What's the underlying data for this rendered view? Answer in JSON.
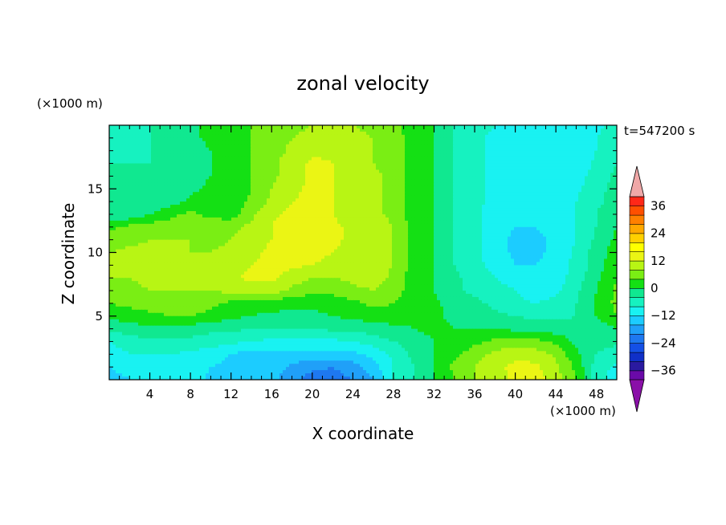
{
  "chart_data": {
    "type": "heatmap",
    "title": "zonal velocity",
    "xlabel": "X coordinate",
    "ylabel": "Z coordinate",
    "x_unit_label": "(×1000 m)",
    "y_unit_label": "(×1000 m)",
    "time_label": "t=547200 s",
    "xlim": [
      0,
      50
    ],
    "ylim": [
      0,
      20
    ],
    "x_ticks": [
      4,
      8,
      12,
      16,
      20,
      24,
      28,
      32,
      36,
      40,
      44,
      48
    ],
    "y_ticks": [
      5,
      10,
      15
    ],
    "colorbar": {
      "levels": [
        -40,
        -36,
        -32,
        -28,
        -24,
        -20,
        -16,
        -12,
        -8,
        -4,
        0,
        4,
        8,
        12,
        16,
        20,
        24,
        28,
        32,
        36,
        40
      ],
      "tick_labels": [
        "36",
        "24",
        "12",
        "0",
        "−12",
        "−24",
        "−36"
      ],
      "tick_values": [
        36,
        24,
        12,
        0,
        -12,
        -24,
        -36
      ],
      "colors": [
        "#6a0aa8",
        "#2a1aa0",
        "#1030c8",
        "#1450e6",
        "#1e78f0",
        "#20a0f8",
        "#1cccff",
        "#19f2f2",
        "#16f2c0",
        "#10e890",
        "#14e014",
        "#7aee14",
        "#b8f514",
        "#ebf514",
        "#ffff00",
        "#ffd000",
        "#ffa800",
        "#ff8000",
        "#ff5000",
        "#ff2818"
      ],
      "over_color": "#f0a8a8",
      "under_color": "#8a10a8"
    },
    "grid": {
      "x": [
        0,
        2,
        4,
        6,
        8,
        10,
        12,
        14,
        16,
        18,
        20,
        22,
        24,
        26,
        28,
        30,
        32,
        34,
        36,
        38,
        40,
        42,
        44,
        46,
        48,
        50
      ],
      "z": [
        0,
        1,
        2,
        3,
        4,
        5,
        6,
        7,
        8,
        9,
        10,
        11,
        12,
        13,
        14,
        15,
        16,
        17,
        18,
        19,
        20
      ],
      "values": [
        [
          -14,
          -12,
          -10,
          -8,
          -10,
          -13,
          -14,
          -14,
          -15,
          -18,
          -22,
          -22,
          -20,
          -16,
          -8,
          -4,
          0,
          4,
          8,
          10,
          13,
          14,
          10,
          4,
          -6,
          -10
        ],
        [
          -12,
          -10,
          -9,
          -8,
          -10,
          -12,
          -13,
          -13,
          -14,
          -17,
          -19,
          -20,
          -18,
          -14,
          -8,
          -4,
          0,
          5,
          8,
          11,
          13,
          13,
          9,
          3,
          -6,
          -9
        ],
        [
          -10,
          -8,
          -8,
          -8,
          -9,
          -10,
          -12,
          -14,
          -13,
          -13,
          -13,
          -13,
          -13,
          -11,
          -7,
          -3,
          0,
          3,
          6,
          9,
          11,
          10,
          7,
          1,
          -4,
          -6
        ],
        [
          -8,
          -6,
          -5,
          -5,
          -5,
          -6,
          -7,
          -8,
          -9,
          -9,
          -9,
          -9,
          -8,
          -6,
          -4,
          -2,
          0,
          1,
          3,
          5,
          6,
          5,
          3,
          -1,
          -3,
          -3
        ],
        [
          -3,
          -2,
          -1,
          -1,
          -2,
          -3,
          -3,
          -4,
          -4,
          -4,
          -4,
          -3,
          -3,
          -2,
          -1,
          0,
          1,
          0,
          0,
          0,
          -1,
          -1,
          -2,
          -3,
          -2,
          0
        ],
        [
          1,
          2,
          3,
          4,
          4,
          3,
          1,
          0,
          -1,
          -1,
          -1,
          0,
          1,
          2,
          2,
          1,
          1,
          -1,
          -2,
          -3,
          -4,
          -5,
          -5,
          -4,
          0,
          4
        ],
        [
          4,
          5,
          6,
          6,
          6,
          5,
          3,
          2,
          2,
          1,
          1,
          2,
          3,
          5,
          4,
          2,
          1,
          -2,
          -3,
          -5,
          -7,
          -8,
          -7,
          -4,
          1,
          5
        ],
        [
          6,
          7,
          8,
          8,
          8,
          8,
          9,
          10,
          10,
          7,
          5,
          5,
          7,
          8,
          6,
          2,
          0,
          -3,
          -5,
          -6,
          -8,
          -10,
          -9,
          -5,
          0,
          5
        ],
        [
          8,
          8,
          9,
          9,
          9,
          9,
          11,
          13,
          13,
          10,
          8,
          8,
          9,
          10,
          7,
          2,
          0,
          -3,
          -6,
          -8,
          -10,
          -11,
          -10,
          -6,
          -1,
          4
        ],
        [
          9,
          9,
          9,
          9,
          9,
          8,
          10,
          12,
          13,
          13,
          12,
          10,
          10,
          10,
          8,
          2,
          0,
          -4,
          -7,
          -9,
          -12,
          -12,
          -10,
          -7,
          -2,
          3
        ],
        [
          8,
          9,
          9,
          9,
          8,
          8,
          9,
          11,
          13,
          14,
          14,
          12,
          11,
          10,
          8,
          2,
          0,
          -4,
          -7,
          -10,
          -13,
          -13,
          -11,
          -7,
          -2,
          2
        ],
        [
          6,
          7,
          8,
          8,
          8,
          7,
          8,
          10,
          12,
          14,
          14,
          13,
          11,
          10,
          8,
          2,
          0,
          -4,
          -7,
          -10,
          -13,
          -13,
          -11,
          -8,
          -3,
          1
        ],
        [
          3,
          5,
          6,
          6,
          6,
          6,
          7,
          9,
          12,
          15,
          14,
          13,
          11,
          10,
          8,
          2,
          0,
          -4,
          -7,
          -10,
          -12,
          -12,
          -11,
          -8,
          -4,
          0
        ],
        [
          -2,
          -3,
          0,
          3,
          5,
          3,
          2,
          7,
          11,
          13,
          13,
          12,
          10,
          9,
          7,
          2,
          0,
          -4,
          -7,
          -10,
          -11,
          -11,
          -10,
          -8,
          -4,
          -1
        ],
        [
          -3,
          -4,
          -4,
          -2,
          1,
          2,
          1,
          5,
          9,
          12,
          13,
          12,
          10,
          9,
          7,
          2,
          0,
          -4,
          -7,
          -9,
          -10,
          -10,
          -10,
          -8,
          -5,
          -2
        ],
        [
          -4,
          -4,
          -4,
          -3,
          -1,
          1,
          1,
          4,
          8,
          11,
          13,
          12,
          10,
          9,
          7,
          2,
          0,
          -4,
          -7,
          -9,
          -10,
          -10,
          -11,
          -9,
          -5,
          -3
        ],
        [
          -4,
          -4,
          -4,
          -3,
          -2,
          0,
          1,
          4,
          7,
          10,
          13,
          12,
          10,
          9,
          7,
          2,
          0,
          -4,
          -7,
          -9,
          -10,
          -10,
          -12,
          -10,
          -6,
          -3
        ],
        [
          -4,
          -4,
          -4,
          -3,
          -2,
          0,
          2,
          4,
          7,
          10,
          13,
          12,
          10,
          8,
          6,
          2,
          0,
          -4,
          -7,
          -9,
          -10,
          -11,
          -12,
          -11,
          -7,
          -4
        ],
        [
          -5,
          -5,
          -4,
          -3,
          -2,
          0,
          2,
          4,
          6,
          9,
          11,
          11,
          10,
          8,
          6,
          2,
          0,
          -4,
          -7,
          -9,
          -10,
          -11,
          -12,
          -11,
          -8,
          -5
        ],
        [
          -6,
          -5,
          -4,
          -3,
          -1,
          1,
          2,
          4,
          6,
          8,
          9,
          10,
          9,
          8,
          6,
          2,
          0,
          -4,
          -7,
          -9,
          -10,
          -11,
          -12,
          -11,
          -8,
          -6
        ],
        [
          -6,
          -5,
          -4,
          -3,
          -1,
          1,
          3,
          4,
          5,
          7,
          8,
          9,
          8,
          7,
          5,
          2,
          0,
          -4,
          -6,
          -8,
          -10,
          -11,
          -12,
          -11,
          -9,
          -6
        ]
      ]
    }
  }
}
